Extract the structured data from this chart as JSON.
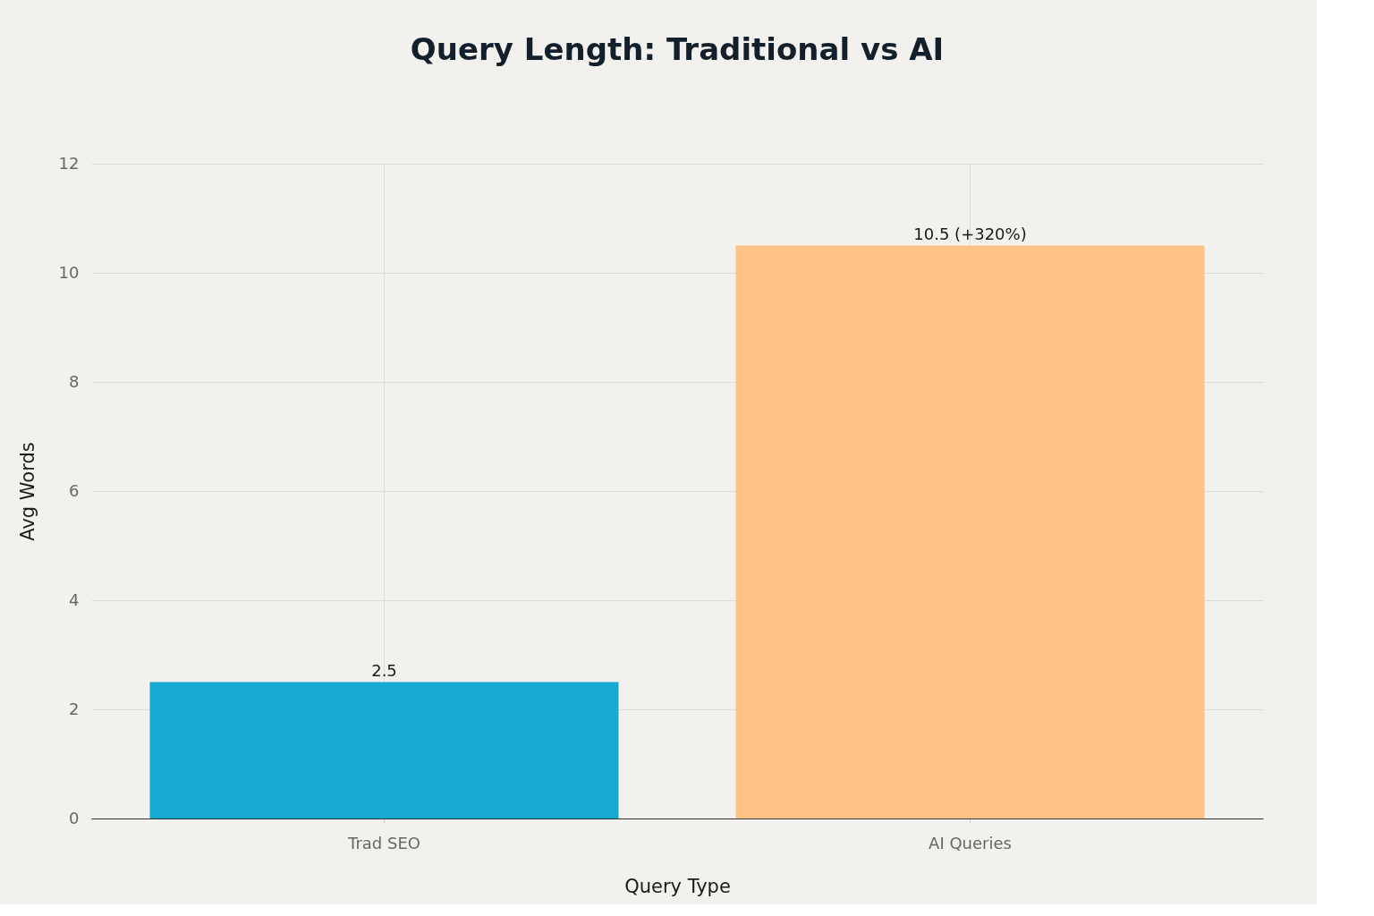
{
  "chart_data": {
    "type": "bar",
    "title": "Query Length: Traditional vs AI",
    "xlabel": "Query Type",
    "ylabel": "Avg Words",
    "categories": [
      "Trad SEO",
      "AI Queries"
    ],
    "values": [
      2.5,
      10.5
    ],
    "colors": [
      "#17a9d1",
      "#ffc285"
    ],
    "value_labels": [
      "2.5",
      "10.5 (+320%)"
    ],
    "ylim": [
      0,
      12
    ],
    "yticks": [
      0,
      2,
      4,
      6,
      8,
      10,
      12
    ],
    "grid": true
  }
}
